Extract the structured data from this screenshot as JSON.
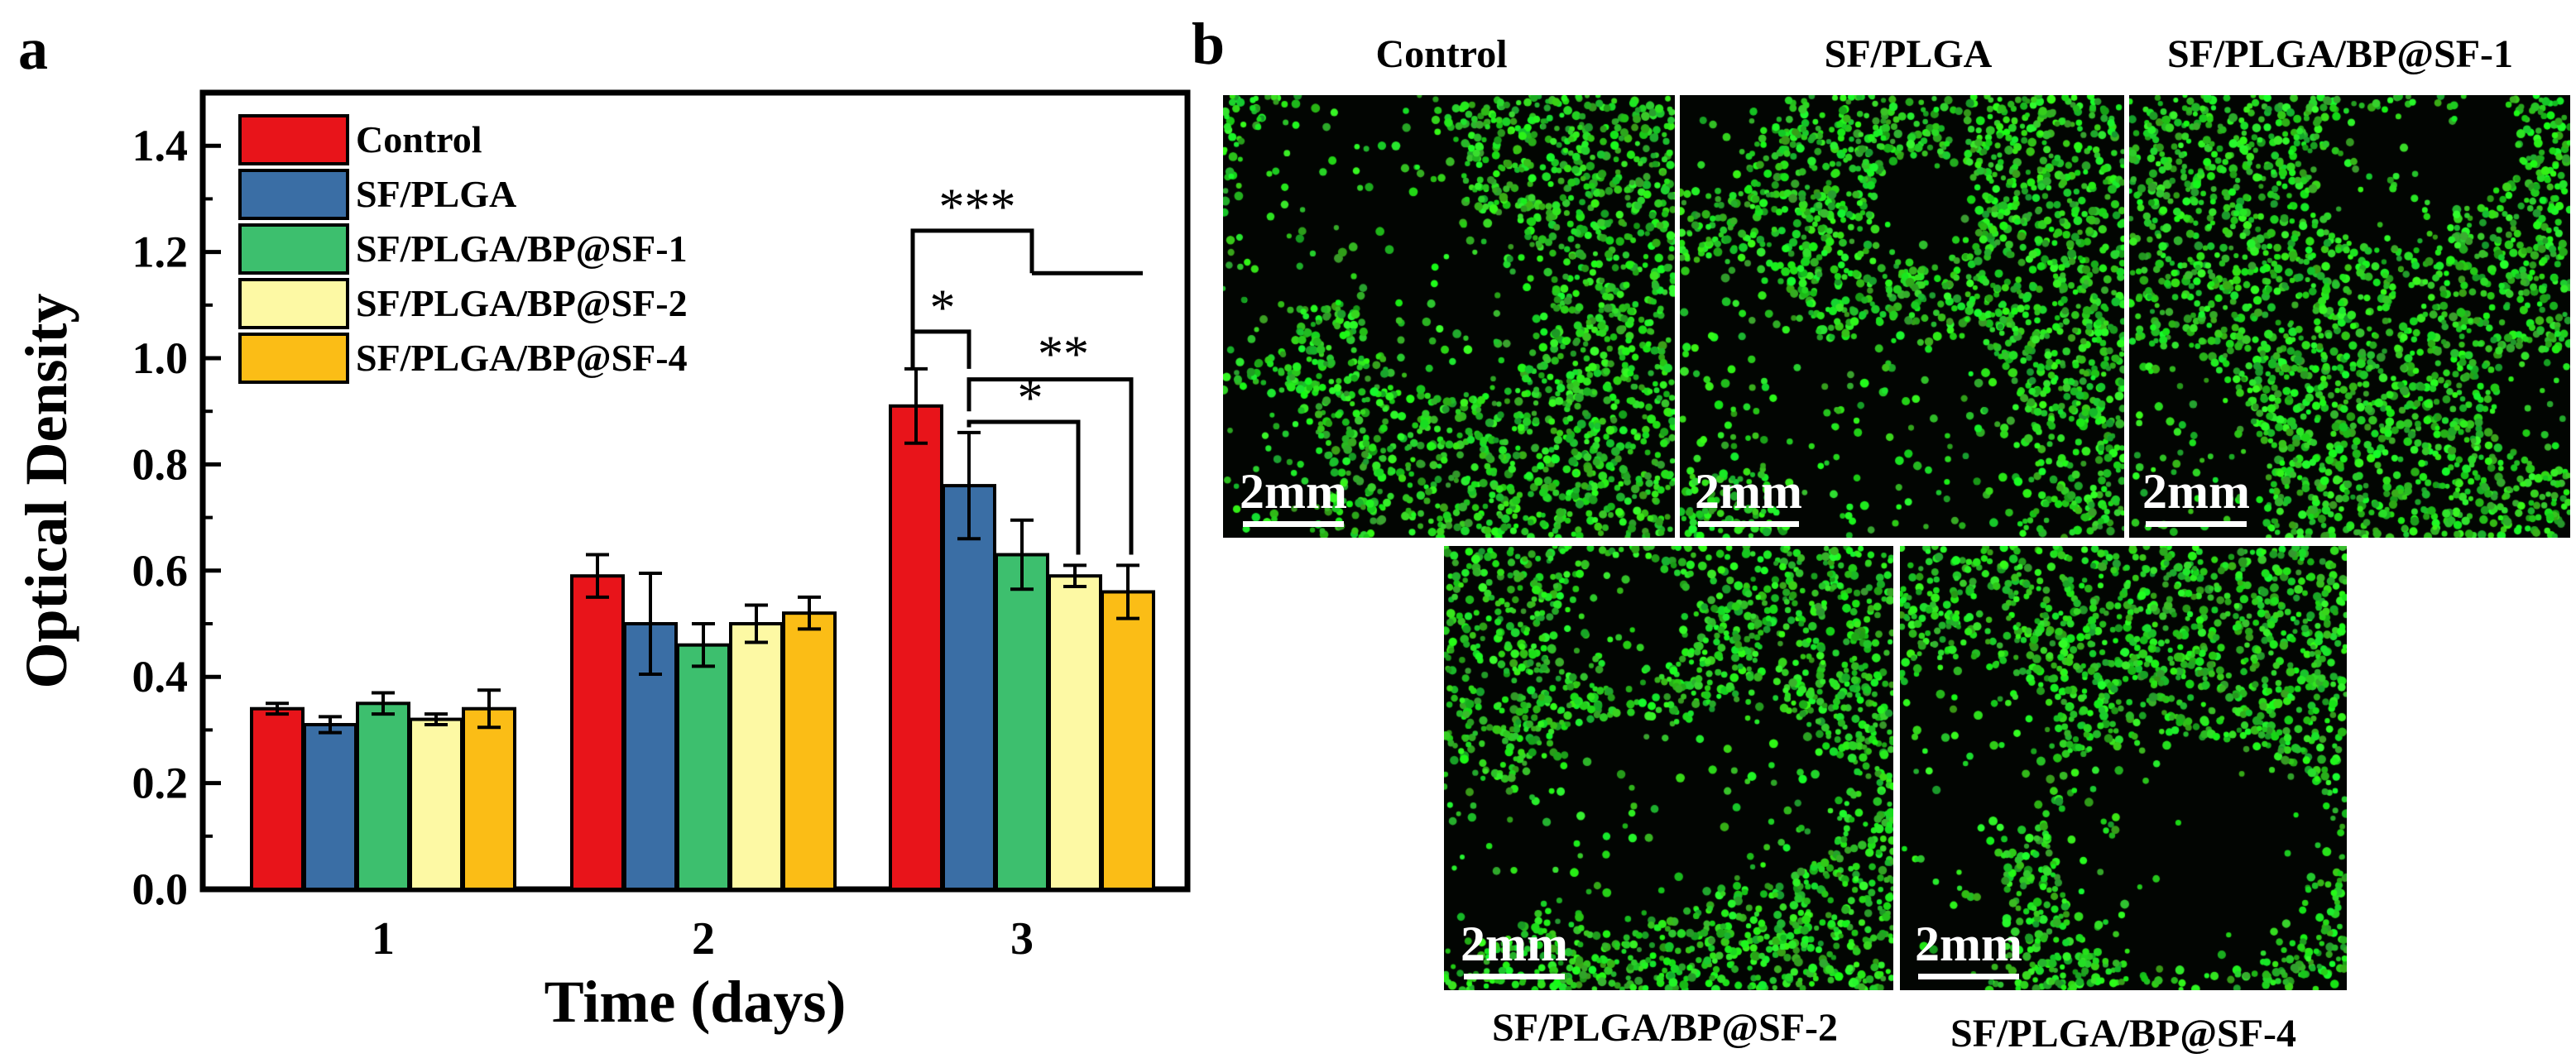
{
  "panels": {
    "a": "a",
    "b": "b"
  },
  "chart_data": {
    "type": "bar",
    "xlabel": "Time (days)",
    "ylabel": "Optical Density",
    "ylim": [
      0,
      1.5
    ],
    "yticks": [
      "0.0",
      "0.2",
      "0.4",
      "0.6",
      "0.8",
      "1.0",
      "1.2",
      "1.4"
    ],
    "categories": [
      "1",
      "2",
      "3"
    ],
    "legend_position": "top-left",
    "grid": false,
    "series": [
      {
        "name": "Control",
        "color": "#e8141a",
        "values": [
          0.34,
          0.59,
          0.91
        ],
        "errors": [
          0.01,
          0.04,
          0.07
        ]
      },
      {
        "name": "SF/PLGA",
        "color": "#3a6ea5",
        "values": [
          0.31,
          0.5,
          0.76
        ],
        "errors": [
          0.015,
          0.095,
          0.1
        ]
      },
      {
        "name": "SF/PLGA/BP@SF-1",
        "color": "#3dbf6e",
        "values": [
          0.35,
          0.46,
          0.63
        ],
        "errors": [
          0.02,
          0.04,
          0.065
        ]
      },
      {
        "name": "SF/PLGA/BP@SF-2",
        "color": "#fdf9a4",
        "values": [
          0.32,
          0.5,
          0.59
        ],
        "errors": [
          0.01,
          0.035,
          0.02
        ]
      },
      {
        "name": "SF/PLGA/BP@SF-4",
        "color": "#fbbd16",
        "values": [
          0.34,
          0.52,
          0.56
        ],
        "errors": [
          0.035,
          0.03,
          0.05
        ]
      }
    ],
    "annotations": [
      "***",
      "*",
      "**",
      "*"
    ]
  },
  "micrographs": [
    {
      "title": "Control",
      "scale": "2mm"
    },
    {
      "title": "SF/PLGA",
      "scale": "2mm"
    },
    {
      "title": "SF/PLGA/BP@SF-1",
      "scale": "2mm"
    },
    {
      "title": "SF/PLGA/BP@SF-2",
      "scale": "2mm"
    },
    {
      "title": "SF/PLGA/BP@SF-4",
      "scale": "2mm"
    }
  ]
}
